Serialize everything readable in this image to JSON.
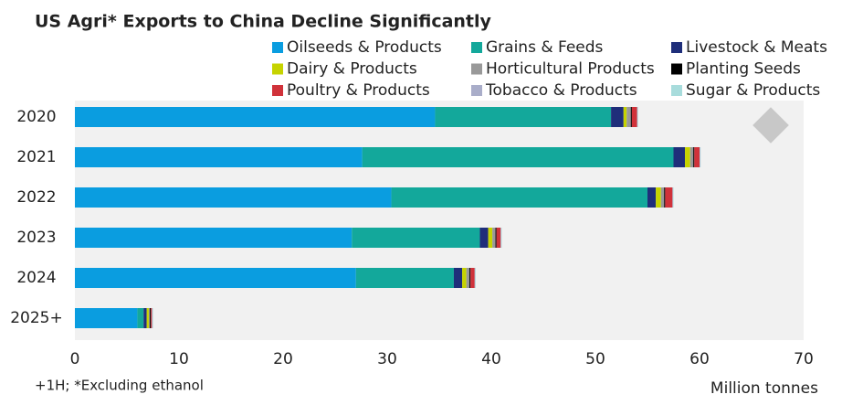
{
  "chart_data": {
    "type": "stacked-bar-horizontal",
    "title": "US Agri* Exports to China Decline Significantly",
    "footnote": "+1H; *Excluding ethanol",
    "x_label": "Million tonnes",
    "categories": [
      "2020",
      "2021",
      "2022",
      "2023",
      "2024",
      "2025+"
    ],
    "series": [
      {
        "name": "Oilseeds & Products",
        "color": "#0a9de0",
        "values": [
          34.6,
          27.6,
          30.4,
          26.6,
          27.0,
          6.0
        ]
      },
      {
        "name": "Grains & Feeds",
        "color": "#13a89b",
        "values": [
          16.9,
          29.9,
          24.6,
          12.3,
          9.4,
          0.6
        ]
      },
      {
        "name": "Livestock & Meats",
        "color": "#1f2e7a",
        "values": [
          1.2,
          1.1,
          0.8,
          0.8,
          0.8,
          0.3
        ]
      },
      {
        "name": "Dairy & Products",
        "color": "#c6d300",
        "values": [
          0.3,
          0.5,
          0.5,
          0.4,
          0.4,
          0.2
        ]
      },
      {
        "name": "Horticultural Products",
        "color": "#999999",
        "values": [
          0.4,
          0.3,
          0.3,
          0.3,
          0.3,
          0.1
        ]
      },
      {
        "name": "Planting Seeds",
        "color": "#000000",
        "values": [
          0.1,
          0.1,
          0.1,
          0.1,
          0.1,
          0.1
        ]
      },
      {
        "name": "Poultry & Products",
        "color": "#d0323a",
        "values": [
          0.5,
          0.5,
          0.7,
          0.4,
          0.4,
          0.1
        ]
      },
      {
        "name": "Tobacco & Products",
        "color": "#a9adc9",
        "values": [
          0.05,
          0.05,
          0.05,
          0.05,
          0.05,
          0.05
        ]
      },
      {
        "name": "Sugar & Products",
        "color": "#a8dcdc",
        "values": [
          0.05,
          0.05,
          0.05,
          0.05,
          0.05,
          0.05
        ]
      }
    ],
    "xlim": [
      0,
      70
    ],
    "xticks": [
      0,
      10,
      20,
      30,
      40,
      50,
      60,
      70
    ],
    "grid": false,
    "legend": "top"
  }
}
